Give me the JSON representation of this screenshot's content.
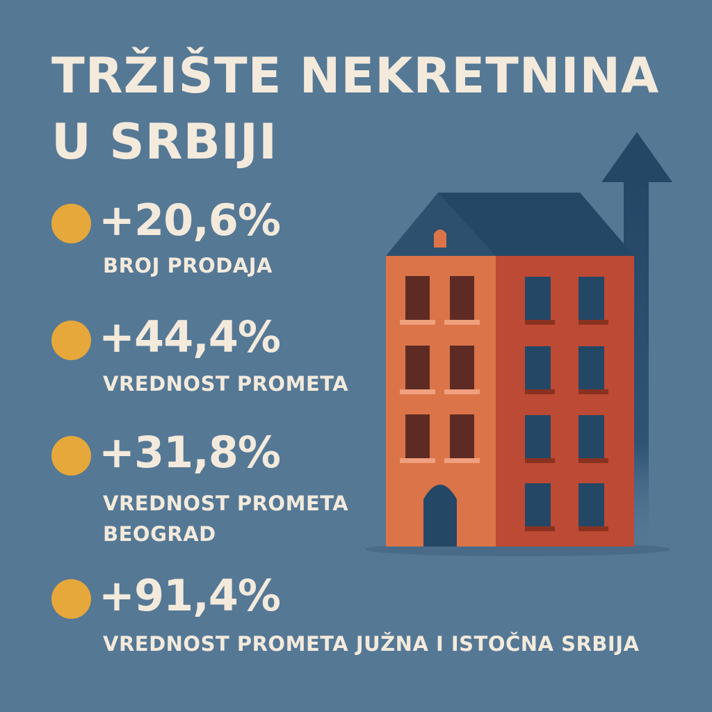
{
  "title": {
    "line1": "TRŽIŠTE NEKRETNINA",
    "line2": "U SRBIJI"
  },
  "stats": [
    {
      "value": "+20,6%",
      "label_lines": [
        "BROJ PRODAJA"
      ]
    },
    {
      "value": "+44,4%",
      "label_lines": [
        "VREDNOST PROMETA"
      ]
    },
    {
      "value": "+31,8%",
      "label_lines": [
        "VREDNOST PROMETA",
        "BEOGRAD"
      ]
    },
    {
      "value": "+91,4%",
      "label_lines": [
        "VREDNOST PROMETA JUŽNA I ISTOČNA SRBIJA"
      ]
    }
  ],
  "colors": {
    "background": "#557895",
    "text": "#f3eadc",
    "bullet": "#e6a83b",
    "roof": "#254766",
    "facade_left": "#db7448",
    "facade_right": "#bd4a35",
    "arrow": "#254766"
  },
  "icons": {
    "bullet": "circle-bullet",
    "building": "apartment-building-icon",
    "arrow": "up-arrow-icon"
  }
}
